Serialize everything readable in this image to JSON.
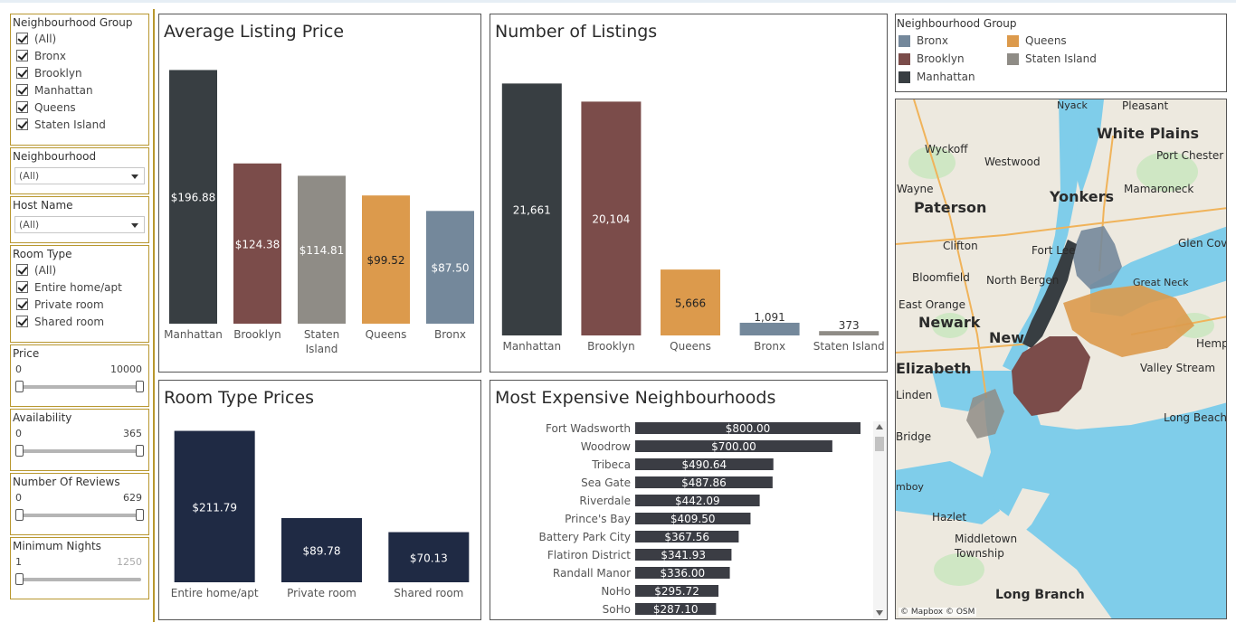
{
  "filters": {
    "neighbourhood_group": {
      "title": "Neighbourhood Group",
      "options": [
        "(All)",
        "Bronx",
        "Brooklyn",
        "Manhattan",
        "Queens",
        "Staten Island"
      ]
    },
    "neighbourhood": {
      "title": "Neighbourhood",
      "value": "(All)"
    },
    "host_name": {
      "title": "Host Name",
      "value": "(All)"
    },
    "room_type": {
      "title": "Room Type",
      "options": [
        "(All)",
        "Entire home/apt",
        "Private room",
        "Shared room"
      ]
    },
    "price": {
      "title": "Price",
      "min": "0",
      "max": "10000"
    },
    "availability": {
      "title": "Availability",
      "min": "0",
      "max": "365"
    },
    "number_of_reviews": {
      "title": "Number Of Reviews",
      "min": "0",
      "max": "629"
    },
    "minimum_nights": {
      "title": "Minimum Nights",
      "min": "1",
      "max": "1250"
    }
  },
  "colors": {
    "Manhattan": "#383e42",
    "Brooklyn": "#7b4c4a",
    "Staten Island": "#8f8c86",
    "Queens": "#dc9a4c",
    "Bronx": "#74889b",
    "room": "#1f2a44",
    "neigh": "#3b3d44"
  },
  "legend": {
    "title": "Neighbourhood Group",
    "items": [
      "Bronx",
      "Queens",
      "Brooklyn",
      "Staten Island",
      "Manhattan"
    ]
  },
  "map": {
    "labels": [
      "Wyckoff",
      "Westwood",
      "White Plains",
      "Port Chester",
      "Wayne",
      "Yonkers",
      "Mamaroneck",
      "Paterson",
      "Clifton",
      "Fort Lee",
      "Glen Cov",
      "Bloomfield",
      "North Bergen",
      "Great Neck",
      "East Orange",
      "Newark",
      "New",
      "Hempst",
      "Elizabeth",
      "Valley Stream",
      "Linden",
      "Long Beach",
      "Bridge",
      "mboy",
      "Hazlet",
      "Middletown Township",
      "Long Branch",
      "Nyack",
      "Pleasant"
    ],
    "attribution": "© Mapbox © OSM"
  },
  "chart_data": [
    {
      "type": "bar",
      "title": "Average Listing Price",
      "categories": [
        "Manhattan",
        "Brooklyn",
        "Staten Island",
        "Queens",
        "Bronx"
      ],
      "values": [
        196.88,
        124.38,
        114.81,
        99.52,
        87.5
      ],
      "labels": [
        "$196.88",
        "$124.38",
        "$114.81",
        "$99.52",
        "$87.50"
      ],
      "ylim": [
        0,
        200
      ]
    },
    {
      "type": "bar",
      "title": "Number of Listings",
      "categories": [
        "Manhattan",
        "Brooklyn",
        "Queens",
        "Bronx",
        "Staten Island"
      ],
      "values": [
        21661,
        20104,
        5666,
        1091,
        373
      ],
      "labels": [
        "21,661",
        "20,104",
        "5,666",
        "1,091",
        "373"
      ],
      "ylim": [
        0,
        22000
      ]
    },
    {
      "type": "bar",
      "title": "Room Type Prices",
      "categories": [
        "Entire home/apt",
        "Private room",
        "Shared room"
      ],
      "values": [
        211.79,
        89.78,
        70.13
      ],
      "labels": [
        "$211.79",
        "$89.78",
        "$70.13"
      ],
      "ylim": [
        0,
        215
      ]
    },
    {
      "type": "bar",
      "orientation": "horizontal",
      "title": "Most Expensive Neighbourhoods",
      "categories": [
        "Fort Wadsworth",
        "Woodrow",
        "Tribeca",
        "Sea Gate",
        "Riverdale",
        "Prince's Bay",
        "Battery Park City",
        "Flatiron District",
        "Randall Manor",
        "NoHo",
        "SoHo"
      ],
      "values": [
        800.0,
        700.0,
        490.64,
        487.86,
        442.09,
        409.5,
        367.56,
        341.93,
        336.0,
        295.72,
        287.1
      ],
      "labels": [
        "$800.00",
        "$700.00",
        "$490.64",
        "$487.86",
        "$442.09",
        "$409.50",
        "$367.56",
        "$341.93",
        "$336.00",
        "$295.72",
        "$287.10"
      ],
      "xlim": [
        0,
        800
      ]
    }
  ]
}
